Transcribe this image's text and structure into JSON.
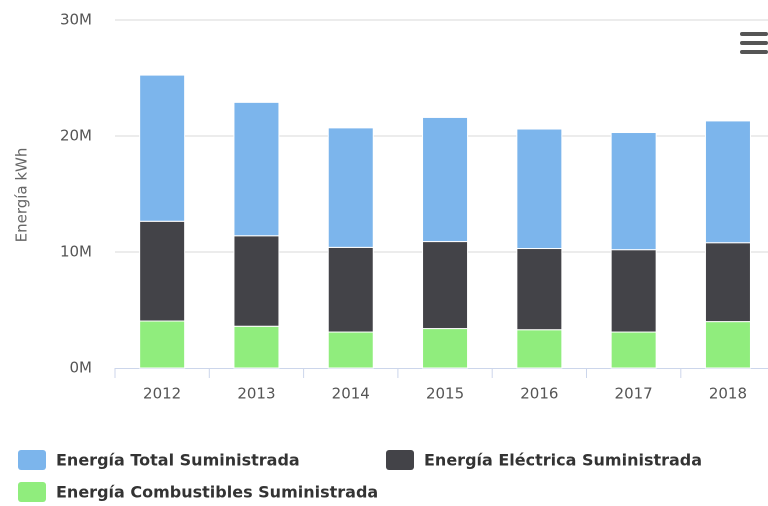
{
  "chart_data": {
    "type": "stacked_bar",
    "y_axis_label": "Energía kWh",
    "categories": [
      "2012",
      "2013",
      "2014",
      "2015",
      "2016",
      "2017",
      "2018"
    ],
    "series": [
      {
        "name": "Energía Total Suministrada",
        "color": "#7cb5ec",
        "values": [
          12600000,
          11500000,
          10300000,
          10700000,
          10300000,
          10100000,
          10500000
        ]
      },
      {
        "name": "Energía Eléctrica Suministrada",
        "color": "#434348",
        "values": [
          8600000,
          7800000,
          7300000,
          7500000,
          7000000,
          7100000,
          6800000
        ]
      },
      {
        "name": "Energía Combustibles Suministrada",
        "color": "#90ed7d",
        "values": [
          4050000,
          3600000,
          3100000,
          3400000,
          3300000,
          3100000,
          4000000
        ]
      }
    ],
    "ylim": [
      0,
      30000000
    ],
    "yticks": [
      {
        "value": 0,
        "label": "0M"
      },
      {
        "value": 10000000,
        "label": "10M"
      },
      {
        "value": 20000000,
        "label": "20M"
      },
      {
        "value": 30000000,
        "label": "30M"
      }
    ],
    "grid": true
  }
}
